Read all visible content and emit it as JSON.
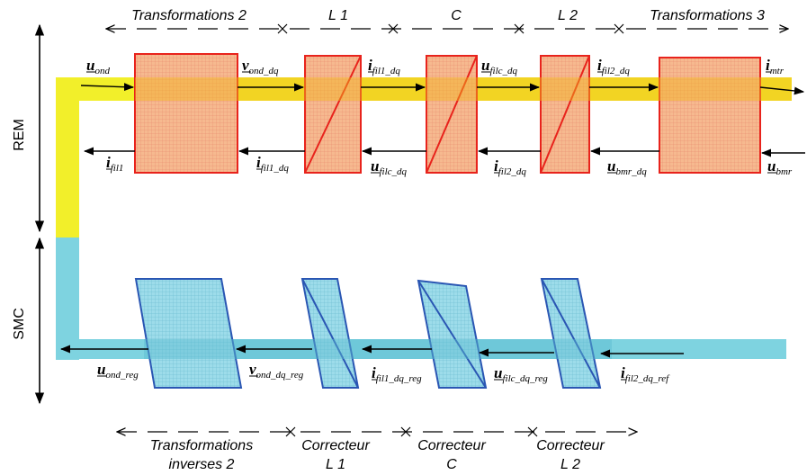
{
  "colors": {
    "rem_band": "#f2ef2a",
    "smc_band": "#7ed3e0",
    "rem_block_fill": "#f6b98f",
    "rem_block_stroke": "#e8231c",
    "smc_block_fill": "#9ddcea",
    "smc_block_stroke": "#2a56b3",
    "arrow": "#000000"
  },
  "side_labels": {
    "rem": "REM",
    "smc": "SMC"
  },
  "top_headers": {
    "transformations_2": "Transformations 2",
    "l1": "L 1",
    "c": "C",
    "l2": "L 2",
    "transformations_3": "Transformations 3"
  },
  "bottom_headers": {
    "transformations_inverses_line1": "Transformations",
    "transformations_inverses_line2": "inverses 2",
    "correcteur_l1_line1": "Correcteur",
    "correcteur_l1_line2": "L 1",
    "correcteur_c_line1": "Correcteur",
    "correcteur_c_line2": "C",
    "correcteur_l2_line1": "Correcteur",
    "correcteur_l2_line2": "L 2"
  },
  "signals_top": {
    "u_ond": {
      "main": "u",
      "sub": "ond"
    },
    "v_ond_dq": {
      "main": "v",
      "sub": "ond_dq"
    },
    "i_fil1_dq": {
      "main": "i",
      "sub": "fil1_dq"
    },
    "u_filc_dq": {
      "main": "u",
      "sub": "filc_dq"
    },
    "i_fil2_dq": {
      "main": "i",
      "sub": "fil2_dq"
    },
    "i_mtr": {
      "main": "i",
      "sub": "mtr"
    }
  },
  "signals_return": {
    "i_fil1": {
      "main": "i",
      "sub": "fil1"
    },
    "i_fil1_dq": {
      "main": "i",
      "sub": "fil1_dq"
    },
    "u_filc_dq": {
      "main": "u",
      "sub": "filc_dq"
    },
    "i_fil2_dq": {
      "main": "i",
      "sub": "fil2_dq"
    },
    "u_bmr_dq": {
      "main": "u",
      "sub": "bmr_dq"
    },
    "u_bmr": {
      "main": "u",
      "sub": "bmr"
    }
  },
  "signals_smc": {
    "u_ond_reg": {
      "main": "u",
      "sub": "ond_reg"
    },
    "v_ond_dq_reg": {
      "main": "v",
      "sub": "ond_dq_reg"
    },
    "i_fil1_dq_reg": {
      "main": "i",
      "sub": "fil1_dq_reg"
    },
    "u_filc_dq_reg": {
      "main": "u",
      "sub": "filc_dq_reg"
    },
    "i_fil2_dq_ref": {
      "main": "i",
      "sub": "fil2_dq_ref"
    }
  }
}
